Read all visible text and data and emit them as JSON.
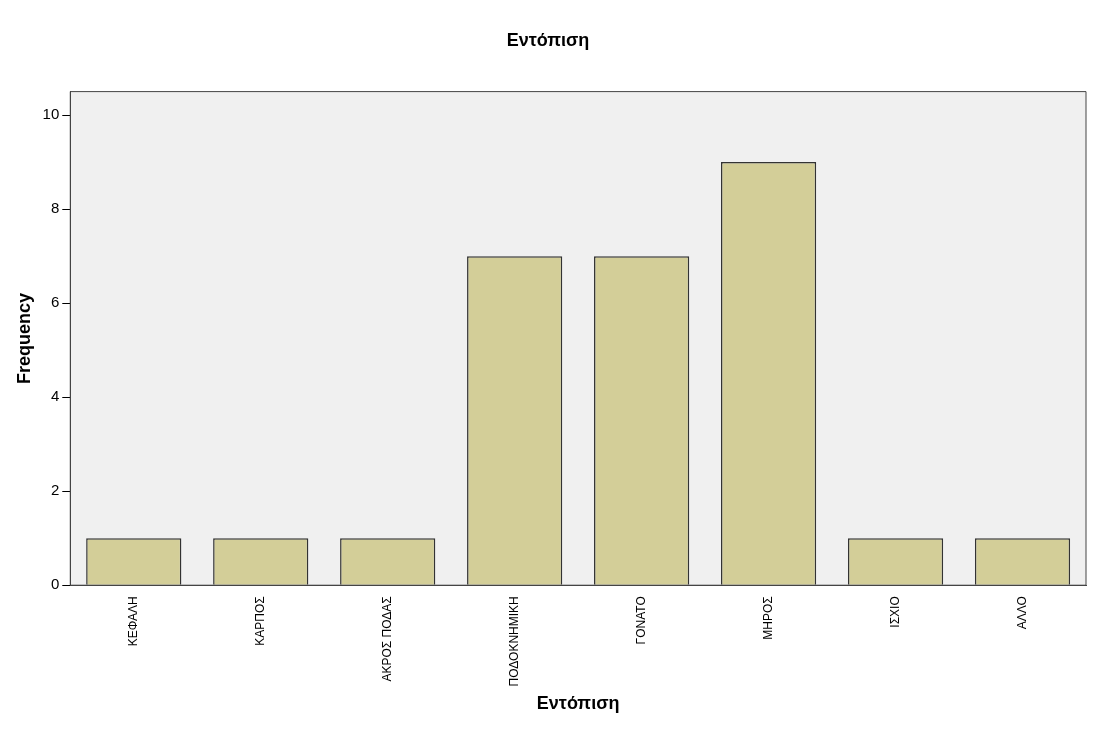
{
  "chart_data": {
    "type": "bar",
    "title": "Εντόπιση",
    "xlabel": "Εντόπιση",
    "ylabel": "Frequency",
    "categories": [
      "ΚΕΦΑΛΗ",
      "ΚΑΡΠΟΣ",
      "ΑΚΡΟΣ ΠΟΔΑΣ",
      "ΠΟΔΟΚΝΗΜΙΚΗ",
      "ΓΟΝΑΤΟ",
      "ΜΗΡΟΣ",
      "ΙΣΧΙΟ",
      "ΑΛΛΟ"
    ],
    "values": [
      1,
      1,
      1,
      7,
      7,
      9,
      1,
      1
    ],
    "color": "#d3ce98",
    "ylim": [
      0,
      10.5
    ],
    "yticks": [
      0,
      2,
      4,
      6,
      8,
      10
    ],
    "grid": false,
    "legend": false
  }
}
